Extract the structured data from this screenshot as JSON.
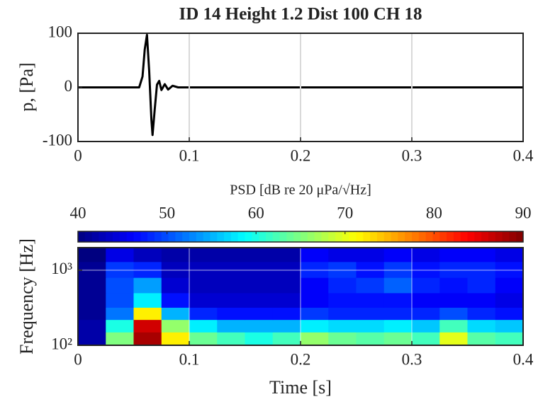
{
  "chart_data": [
    {
      "type": "line",
      "title": "ID 14 Height 1.2 Dist 100 CH 18",
      "ylabel": "p, [Pa]",
      "x": [
        0,
        0.055,
        0.058,
        0.06,
        0.062,
        0.064,
        0.066,
        0.067,
        0.069,
        0.071,
        0.073,
        0.075,
        0.078,
        0.081,
        0.085,
        0.09,
        0.1,
        0.4
      ],
      "series": [
        {
          "color": "#000000",
          "values": [
            0,
            0,
            20,
            70,
            97,
            30,
            -60,
            -88,
            -40,
            5,
            12,
            -5,
            6,
            -4,
            3,
            0,
            0,
            0
          ]
        }
      ],
      "xlim": [
        0,
        0.4
      ],
      "xticks": [
        0,
        0.1,
        0.2,
        0.3,
        0.4
      ],
      "ylim": [
        -100,
        100
      ],
      "yticks": [
        -100,
        0,
        100
      ],
      "xgrid": true
    },
    {
      "type": "heatmap",
      "xlabel": "Time [s]",
      "ylabel": "Frequency [Hz]",
      "colorbar_label": "PSD [dB re 20 μPa/√Hz]",
      "colormap": "jet",
      "clim": [
        40,
        90
      ],
      "cticks": [
        40,
        50,
        60,
        70,
        80,
        90
      ],
      "xbins": [
        0,
        0.025,
        0.05,
        0.075,
        0.1,
        0.125,
        0.15,
        0.175,
        0.2,
        0.225,
        0.25,
        0.275,
        0.3,
        0.325,
        0.35,
        0.375,
        0.4
      ],
      "ybins": [
        100,
        150,
        220,
        320,
        500,
        800,
        1300,
        2000
      ],
      "values": [
        [
          42,
          65,
          88,
          72,
          64,
          62,
          60,
          62,
          66,
          64,
          63,
          64,
          62,
          70,
          63,
          62
        ],
        [
          42,
          60,
          86,
          66,
          58,
          55,
          55,
          55,
          58,
          57,
          57,
          58,
          56,
          62,
          57,
          56
        ],
        [
          41,
          52,
          72,
          55,
          48,
          47,
          47,
          47,
          49,
          48,
          48,
          48,
          48,
          50,
          48,
          47
        ],
        [
          41,
          50,
          58,
          47,
          44,
          44,
          44,
          44,
          46,
          47,
          47,
          47,
          46,
          46,
          46,
          45
        ],
        [
          41,
          50,
          54,
          44,
          43,
          43,
          43,
          43,
          46,
          48,
          49,
          51,
          48,
          47,
          48,
          46
        ],
        [
          41,
          49,
          48,
          43,
          43,
          43,
          43,
          43,
          48,
          49,
          47,
          49,
          47,
          48,
          48,
          47
        ],
        [
          40,
          45,
          43,
          42,
          42,
          42,
          42,
          42,
          46,
          45,
          45,
          46,
          45,
          46,
          46,
          45
        ]
      ],
      "xlim": [
        0,
        0.4
      ],
      "xticks": [
        0,
        0.1,
        0.2,
        0.3,
        0.4
      ],
      "ylim": [
        100,
        2000
      ],
      "ylog": true,
      "yticks": [
        {
          "value": 100,
          "label": "10²"
        },
        {
          "value": 1000,
          "label": "10³"
        }
      ],
      "xgrid": true,
      "ygrid": true
    }
  ]
}
